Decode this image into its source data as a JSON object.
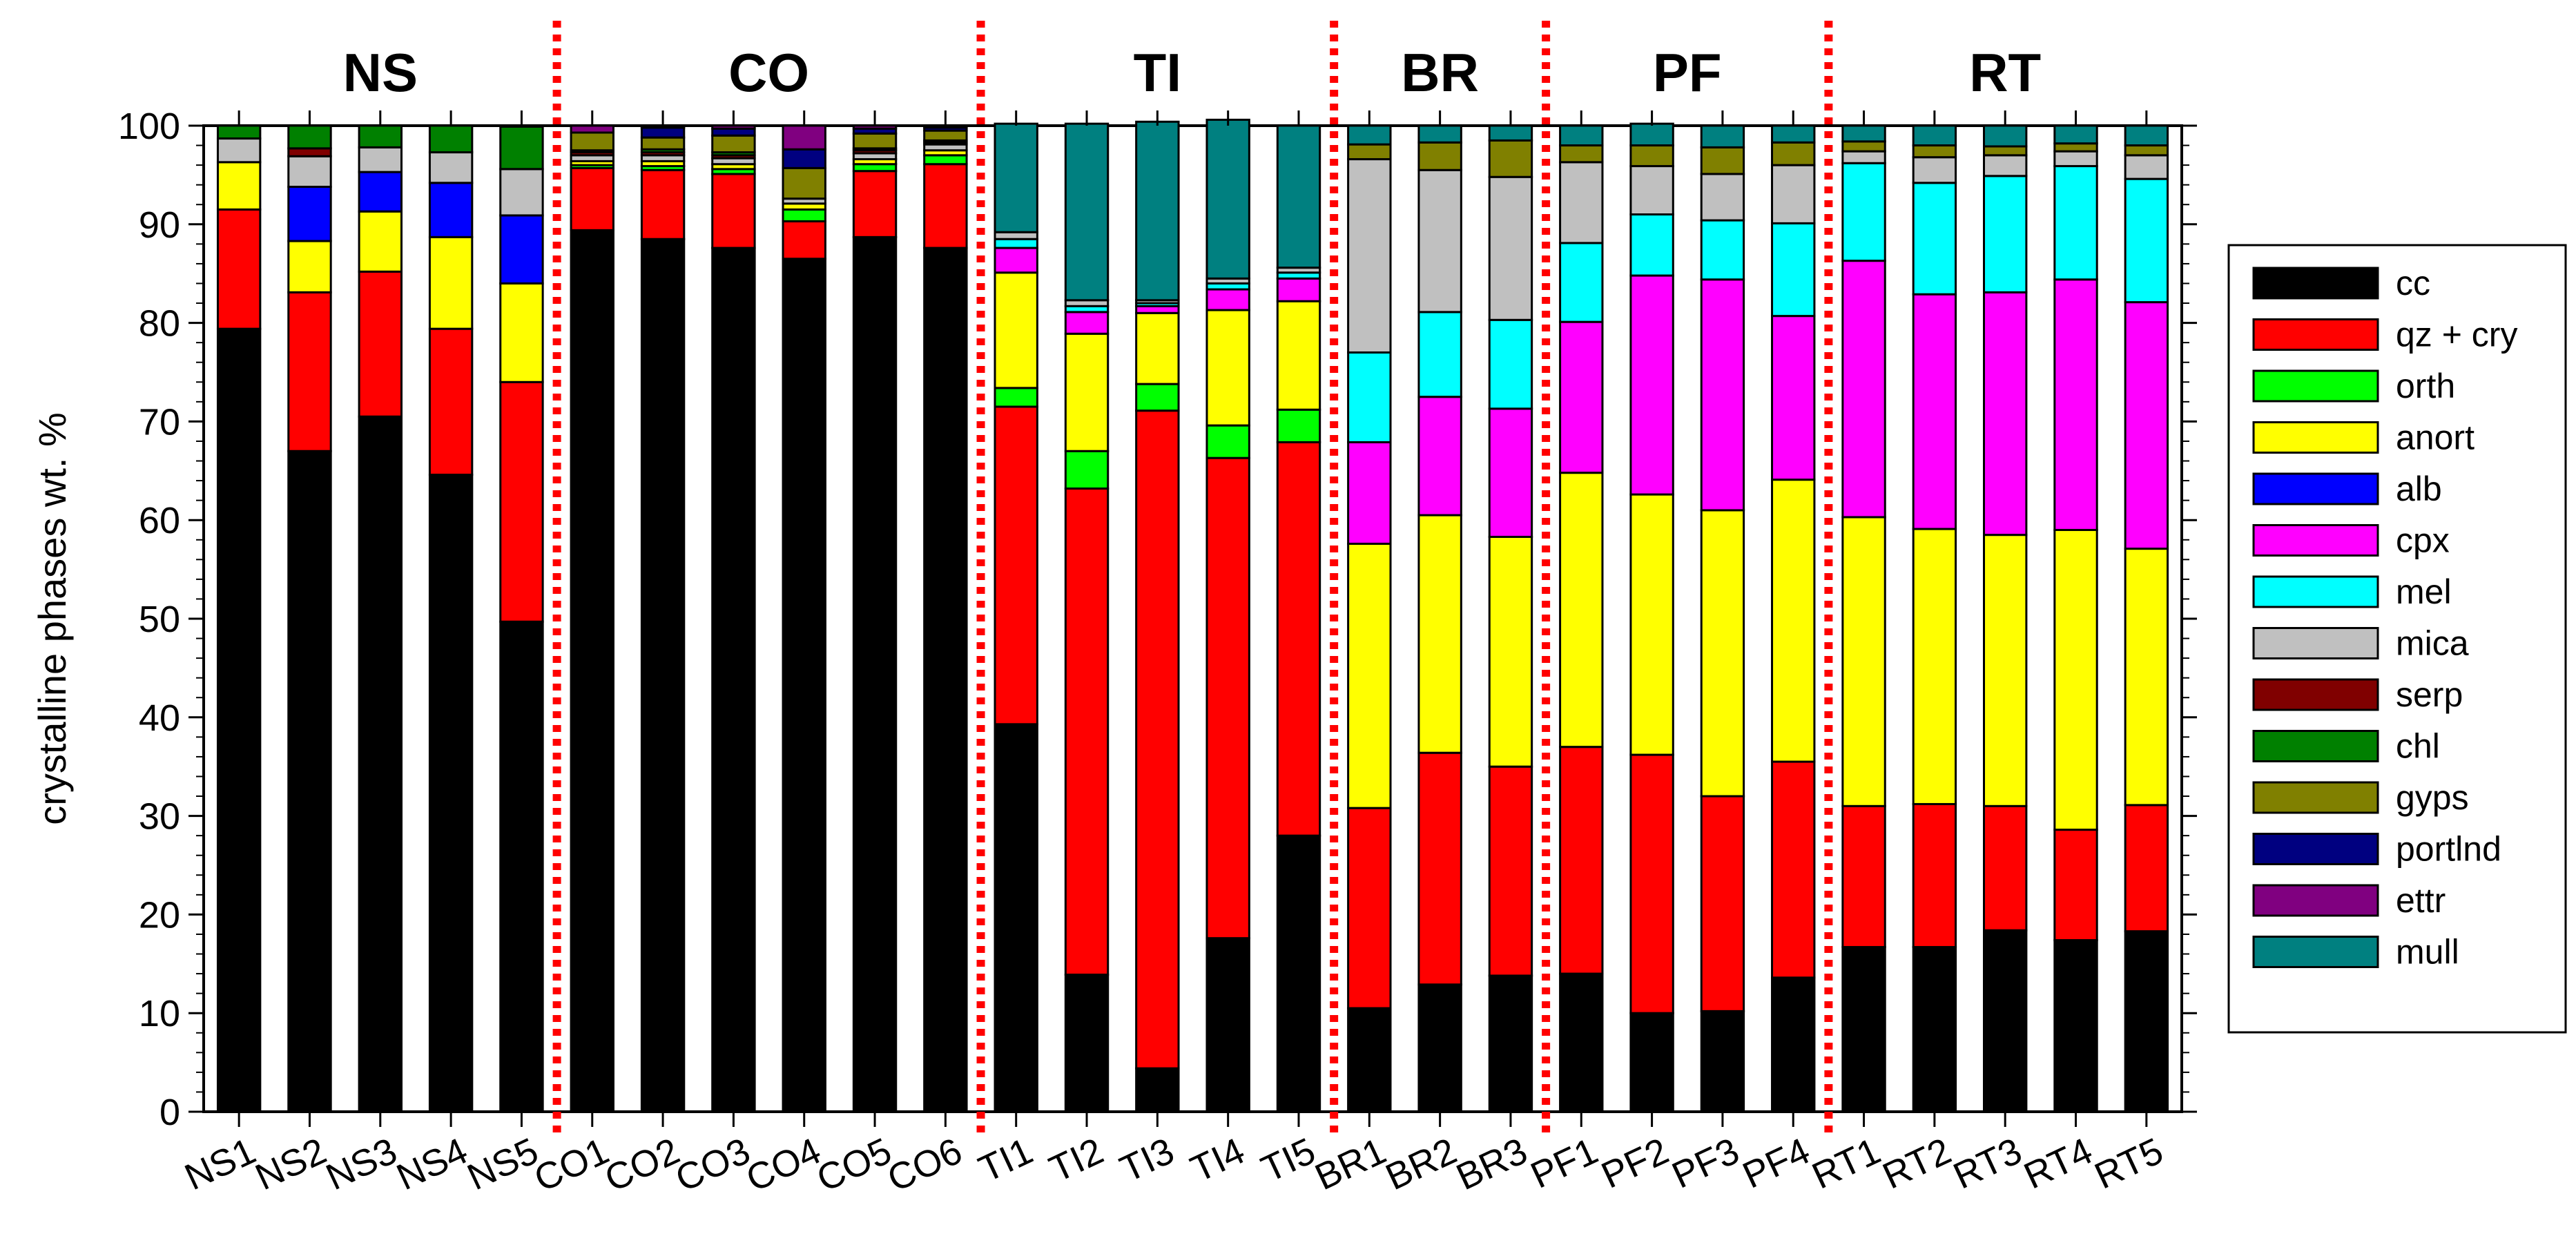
{
  "chart_data": {
    "type": "bar",
    "stacked": true,
    "ylabel": "crystalline phases wt. %",
    "xlabel": "",
    "ylim": [
      0,
      100
    ],
    "yticks": [
      0,
      10,
      20,
      30,
      40,
      50,
      60,
      70,
      80,
      90,
      100
    ],
    "legend_position": "right",
    "groups": [
      {
        "label": "NS",
        "start": 0,
        "end": 4
      },
      {
        "label": "CO",
        "start": 5,
        "end": 10
      },
      {
        "label": "TI",
        "start": 11,
        "end": 15
      },
      {
        "label": "BR",
        "start": 16,
        "end": 18
      },
      {
        "label": "PF",
        "start": 19,
        "end": 22
      },
      {
        "label": "RT",
        "start": 23,
        "end": 27
      }
    ],
    "categories": [
      "NS1",
      "NS2",
      "NS3",
      "NS4",
      "NS5",
      "CO1",
      "CO2",
      "CO3",
      "CO4",
      "CO5",
      "CO6",
      "TI1",
      "TI2",
      "TI3",
      "TI4",
      "TI5",
      "BR1",
      "BR2",
      "BR3",
      "PF1",
      "PF2",
      "PF3",
      "PF4",
      "RT1",
      "RT2",
      "RT3",
      "RT4",
      "RT5"
    ],
    "series": [
      {
        "name": "cc",
        "color": "#000000",
        "values": [
          79.4,
          67.0,
          70.5,
          64.6,
          49.7,
          89.4,
          88.5,
          87.6,
          86.5,
          88.7,
          87.6,
          39.3,
          13.9,
          4.4,
          17.6,
          28.0,
          10.5,
          12.9,
          13.8,
          14.0,
          10.0,
          10.2,
          13.6,
          16.7,
          16.7,
          18.4,
          17.4,
          18.3
        ]
      },
      {
        "name": "qz + cry",
        "color": "#ff0000",
        "values": [
          12.1,
          16.1,
          14.7,
          14.8,
          24.3,
          6.3,
          7.0,
          7.5,
          3.8,
          6.7,
          8.5,
          32.2,
          49.3,
          66.7,
          48.7,
          39.9,
          20.3,
          23.5,
          21.2,
          23.0,
          26.2,
          21.8,
          21.9,
          14.3,
          14.5,
          12.6,
          11.2,
          12.8
        ]
      },
      {
        "name": "orth",
        "color": "#00ff00",
        "values": [
          0.0,
          0.0,
          0.0,
          0.0,
          0.0,
          0.3,
          0.4,
          0.5,
          1.2,
          0.7,
          0.9,
          1.9,
          3.8,
          2.7,
          3.3,
          3.3,
          0,
          0,
          0,
          0,
          0,
          0,
          0,
          0,
          0,
          0,
          0,
          0
        ]
      },
      {
        "name": "anort",
        "color": "#ffff00",
        "values": [
          4.8,
          5.2,
          6.1,
          9.3,
          10.0,
          0.4,
          0.5,
          0.5,
          0.6,
          0.5,
          0.5,
          11.7,
          11.9,
          7.2,
          11.7,
          11.0,
          26.8,
          24.1,
          23.3,
          27.8,
          26.4,
          29.0,
          28.6,
          29.3,
          27.9,
          27.5,
          30.4,
          26.0
        ]
      },
      {
        "name": "alb",
        "color": "#0000ff",
        "values": [
          0.0,
          5.5,
          4.0,
          5.5,
          6.9,
          0,
          0,
          0,
          0,
          0,
          0,
          0,
          0,
          0,
          0,
          0,
          0,
          0,
          0,
          0,
          0,
          0,
          0,
          0,
          0,
          0,
          0,
          0
        ]
      },
      {
        "name": "cpx",
        "color": "#ff00ff",
        "values": [
          0,
          0,
          0,
          0,
          0,
          0,
          0,
          0,
          0,
          0,
          0,
          2.5,
          2.2,
          0.7,
          2.1,
          2.3,
          10.3,
          12.0,
          13.0,
          15.3,
          22.2,
          23.4,
          16.6,
          26.0,
          23.8,
          24.6,
          25.4,
          25.0
        ]
      },
      {
        "name": "mel",
        "color": "#00ffff",
        "values": [
          0,
          0,
          0,
          0,
          0,
          0,
          0,
          0,
          0,
          0,
          0,
          0.9,
          0.6,
          0.3,
          0.6,
          0.6,
          9.1,
          8.6,
          9.0,
          8.0,
          6.2,
          6.0,
          9.4,
          9.9,
          11.3,
          11.8,
          11.5,
          12.5
        ]
      },
      {
        "name": "mica",
        "color": "#c0c0c0",
        "values": [
          2.4,
          3.1,
          2.5,
          3.1,
          4.7,
          0.6,
          0.6,
          0.6,
          0.5,
          0.6,
          0.6,
          0.7,
          0.6,
          0.3,
          0.5,
          0.5,
          19.6,
          14.4,
          14.5,
          8.2,
          4.9,
          4.7,
          5.9,
          1.2,
          2.6,
          2.1,
          1.5,
          2.4
        ]
      },
      {
        "name": "serp",
        "color": "#800000",
        "values": [
          0,
          0.8,
          0,
          0,
          0,
          0.3,
          0.3,
          0.3,
          0,
          0.3,
          0.2,
          0,
          0,
          0,
          0,
          0,
          0,
          0,
          0,
          0,
          0,
          0,
          0,
          0,
          0,
          0,
          0,
          0
        ]
      },
      {
        "name": "chl",
        "color": "#008000",
        "values": [
          1.3,
          2.3,
          2.2,
          2.7,
          4.3,
          0.2,
          0.3,
          0.3,
          0,
          0.2,
          0.2,
          0,
          0,
          0,
          0,
          0,
          0,
          0,
          0,
          0,
          0,
          0,
          0,
          0,
          0,
          0,
          0,
          0
        ]
      },
      {
        "name": "gyps",
        "color": "#808000",
        "values": [
          0,
          0,
          0,
          0,
          0,
          1.8,
          1.2,
          1.7,
          3.1,
          1.5,
          1.0,
          0,
          0,
          0,
          0,
          0,
          1.5,
          2.8,
          3.7,
          1.7,
          2.1,
          2.7,
          2.3,
          1.0,
          1.2,
          0.9,
          0.8,
          1.0
        ]
      },
      {
        "name": "portlnd",
        "color": "#000080",
        "values": [
          0,
          0,
          0,
          0,
          0,
          0,
          1.0,
          0.7,
          1.9,
          0.5,
          0.3,
          0,
          0,
          0,
          0,
          0,
          0,
          0,
          0,
          0,
          0,
          0,
          0,
          0,
          0,
          0,
          0,
          0
        ]
      },
      {
        "name": "ettr",
        "color": "#800080",
        "values": [
          0,
          0,
          0,
          0,
          0,
          0.7,
          0.2,
          0.3,
          2.4,
          0.3,
          0.2,
          0,
          0,
          0,
          0,
          0,
          0,
          0,
          0,
          0,
          0,
          0,
          0,
          0,
          0,
          0,
          0,
          0
        ]
      },
      {
        "name": "mull",
        "color": "#008080",
        "values": [
          0,
          0,
          0,
          0,
          0,
          0,
          0,
          0,
          0,
          0,
          0,
          11.0,
          17.9,
          18.1,
          16.1,
          14.4,
          1.9,
          1.7,
          1.5,
          2.0,
          2.2,
          2.2,
          1.7,
          1.6,
          2.0,
          2.1,
          1.8,
          2.0
        ]
      }
    ]
  }
}
